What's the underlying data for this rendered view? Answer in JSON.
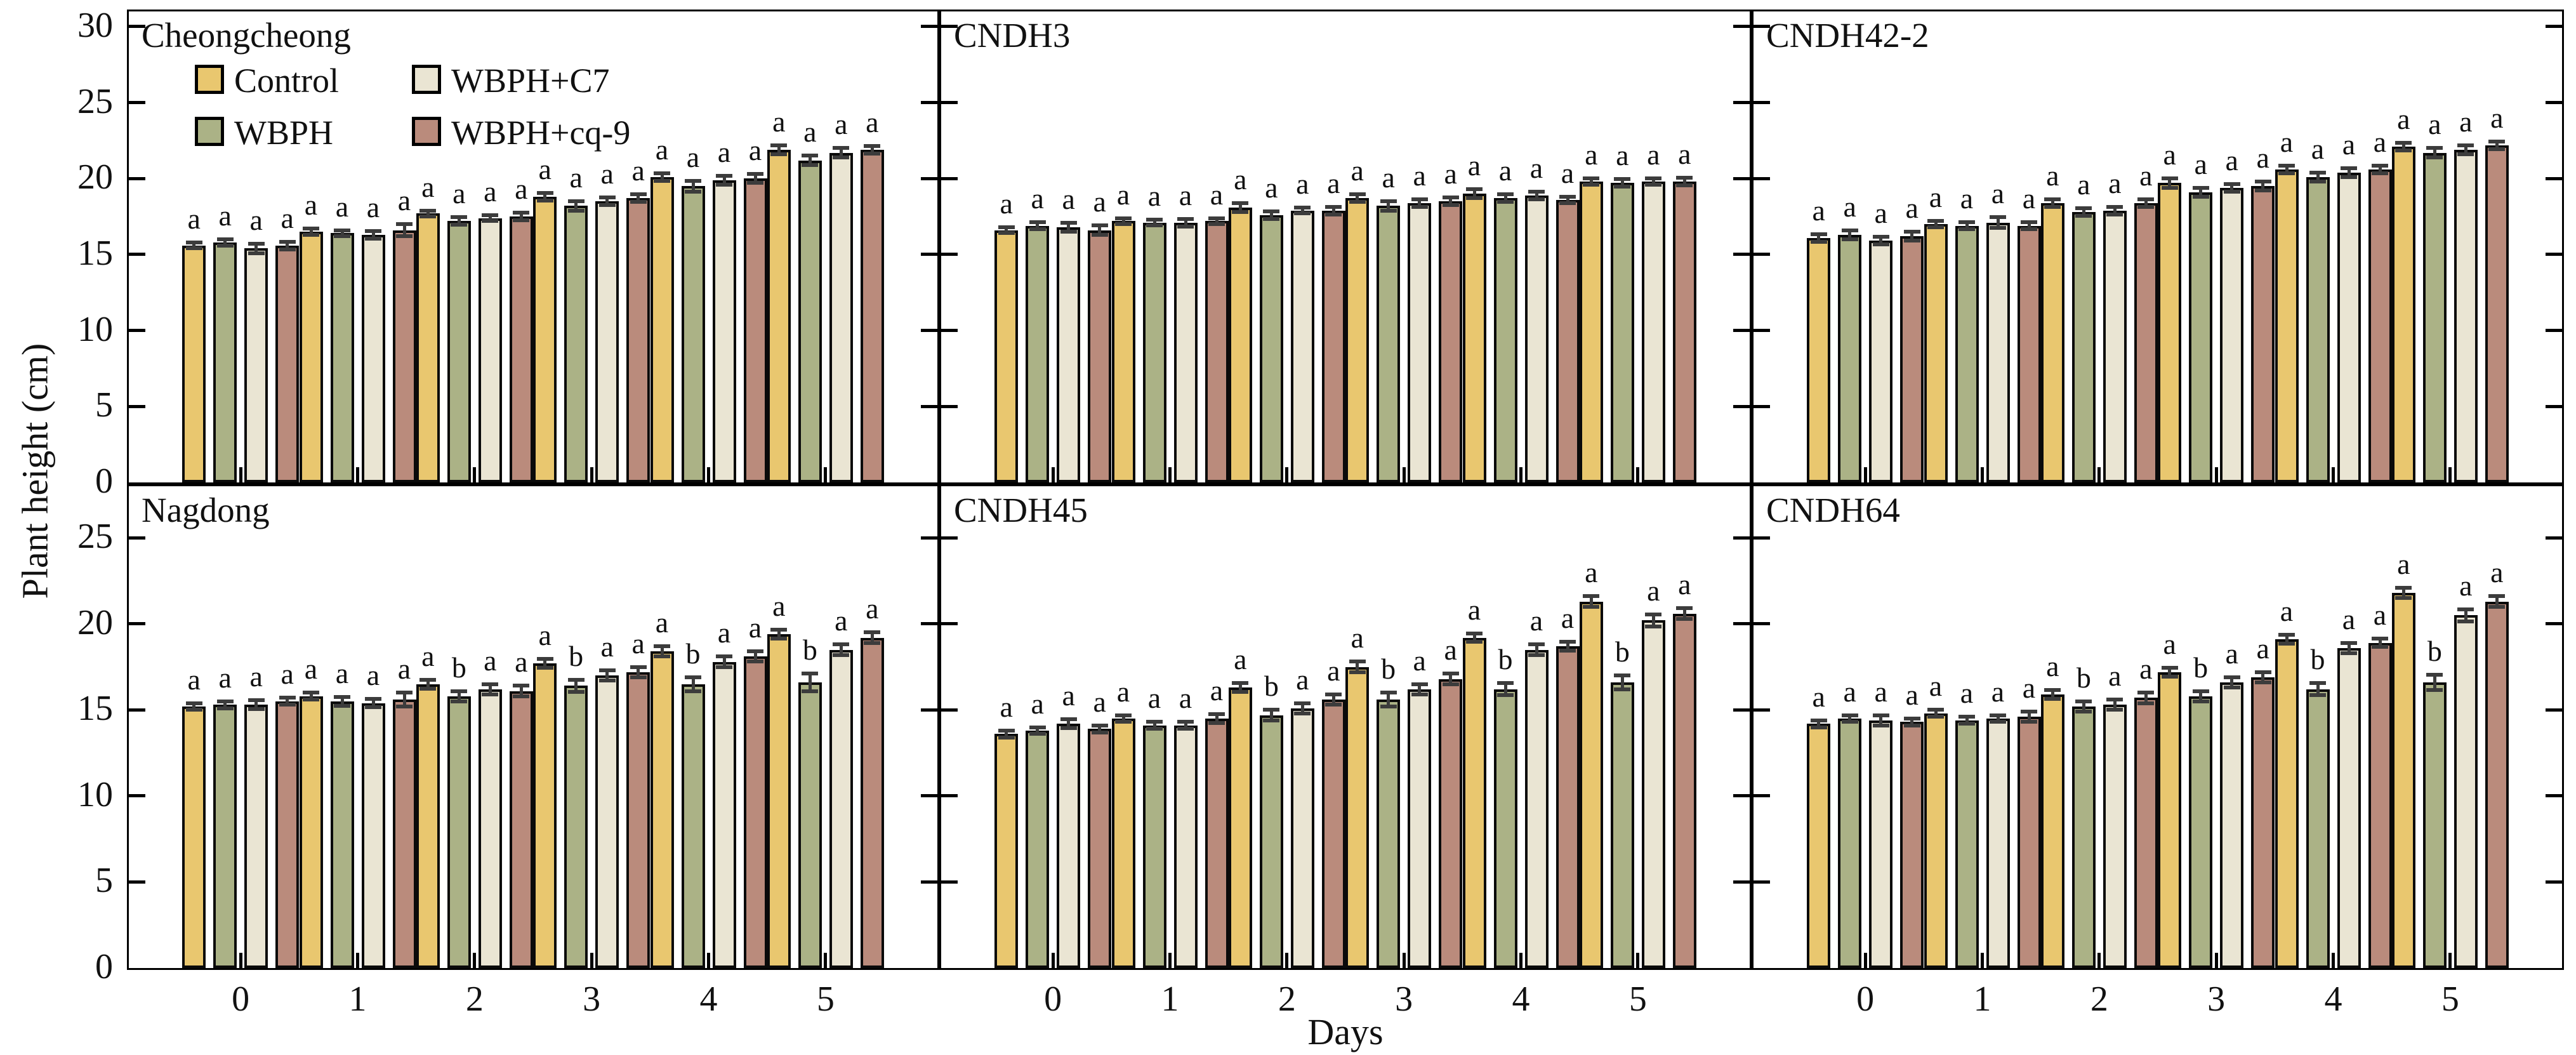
{
  "figure": {
    "y_axis_label": "Plant height (cm)",
    "x_axis_label": "Days",
    "colors": {
      "control": "#e9c76f",
      "wbph": "#abb286",
      "c7": "#eae5d3",
      "cq9": "#ba8b7c",
      "error_bar": "#3c3c3c",
      "bar_outline": "#0a0a0a",
      "frame": "#000000"
    },
    "legend": {
      "items": [
        {
          "label": "Control",
          "color_key": "control"
        },
        {
          "label": "WBPH+C7",
          "color_key": "c7"
        },
        {
          "label": "WBPH",
          "color_key": "wbph"
        },
        {
          "label": "WBPH+cq-9",
          "color_key": "cq9"
        }
      ]
    },
    "axes": {
      "top_row_ticks": [
        30,
        25,
        20,
        15,
        10,
        5,
        0
      ],
      "bottom_row_ticks": [
        25,
        20,
        15,
        10,
        5,
        0
      ]
    }
  },
  "chart_data": [
    {
      "type": "bar",
      "title": "Cheongcheong",
      "show_legend": true,
      "categories": [
        "0",
        "1",
        "2",
        "3",
        "4",
        "5"
      ],
      "ylim": [
        0,
        31
      ],
      "series": [
        {
          "name": "Control",
          "color_key": "control",
          "values": [
            15.6,
            16.5,
            17.7,
            18.8,
            20.1,
            21.9
          ],
          "errors": [
            0.2,
            0.2,
            0.2,
            0.25,
            0.25,
            0.3
          ],
          "letters": [
            "a",
            "a",
            "a",
            "a",
            "a",
            "a"
          ]
        },
        {
          "name": "WBPH",
          "color_key": "wbph",
          "values": [
            15.8,
            16.4,
            17.2,
            18.2,
            19.5,
            21.2
          ],
          "errors": [
            0.2,
            0.2,
            0.25,
            0.3,
            0.35,
            0.3
          ],
          "letters": [
            "a",
            "a",
            "a",
            "a",
            "a",
            "a"
          ]
        },
        {
          "name": "WBPH+C7",
          "color_key": "c7",
          "values": [
            15.4,
            16.3,
            17.4,
            18.5,
            19.9,
            21.7
          ],
          "errors": [
            0.3,
            0.25,
            0.2,
            0.25,
            0.3,
            0.3
          ],
          "letters": [
            "a",
            "a",
            "a",
            "a",
            "a",
            "a"
          ]
        },
        {
          "name": "WBPH+cq-9",
          "color_key": "cq9",
          "values": [
            15.6,
            16.6,
            17.5,
            18.7,
            20.0,
            21.9
          ],
          "errors": [
            0.25,
            0.4,
            0.25,
            0.25,
            0.3,
            0.25
          ],
          "letters": [
            "a",
            "a",
            "a",
            "a",
            "a",
            "a"
          ]
        }
      ]
    },
    {
      "type": "bar",
      "title": "CNDH3",
      "show_legend": false,
      "categories": [
        "0",
        "1",
        "2",
        "3",
        "4",
        "5"
      ],
      "ylim": [
        0,
        31
      ],
      "series": [
        {
          "name": "Control",
          "color_key": "control",
          "values": [
            16.6,
            17.2,
            18.1,
            18.7,
            19.0,
            19.8
          ],
          "errors": [
            0.2,
            0.2,
            0.3,
            0.25,
            0.3,
            0.2
          ],
          "letters": [
            "a",
            "a",
            "a",
            "a",
            "a",
            "a"
          ]
        },
        {
          "name": "WBPH",
          "color_key": "wbph",
          "values": [
            16.9,
            17.1,
            17.6,
            18.2,
            18.7,
            19.7
          ],
          "errors": [
            0.25,
            0.2,
            0.25,
            0.3,
            0.25,
            0.25
          ],
          "letters": [
            "a",
            "a",
            "a",
            "a",
            "a",
            "a"
          ]
        },
        {
          "name": "WBPH+C7",
          "color_key": "c7",
          "values": [
            16.8,
            17.1,
            17.9,
            18.4,
            18.9,
            19.8
          ],
          "errors": [
            0.3,
            0.25,
            0.2,
            0.25,
            0.25,
            0.2
          ],
          "letters": [
            "a",
            "a",
            "a",
            "a",
            "a",
            "a"
          ]
        },
        {
          "name": "WBPH+cq-9",
          "color_key": "cq9",
          "values": [
            16.6,
            17.2,
            17.9,
            18.5,
            18.6,
            19.8
          ],
          "errors": [
            0.3,
            0.2,
            0.25,
            0.25,
            0.2,
            0.25
          ],
          "letters": [
            "a",
            "a",
            "a",
            "a",
            "a",
            "a"
          ]
        }
      ]
    },
    {
      "type": "bar",
      "title": "CNDH42-2",
      "show_legend": false,
      "categories": [
        "0",
        "1",
        "2",
        "3",
        "4",
        "5"
      ],
      "ylim": [
        0,
        31
      ],
      "series": [
        {
          "name": "Control",
          "color_key": "control",
          "values": [
            16.1,
            17.0,
            18.4,
            19.7,
            20.6,
            22.1
          ],
          "errors": [
            0.25,
            0.2,
            0.25,
            0.3,
            0.25,
            0.25
          ],
          "letters": [
            "a",
            "a",
            "a",
            "a",
            "a",
            "a"
          ]
        },
        {
          "name": "WBPH",
          "color_key": "wbph",
          "values": [
            16.3,
            16.9,
            17.8,
            19.1,
            20.1,
            21.7
          ],
          "errors": [
            0.3,
            0.25,
            0.25,
            0.3,
            0.3,
            0.3
          ],
          "letters": [
            "a",
            "a",
            "a",
            "a",
            "a",
            "a"
          ]
        },
        {
          "name": "WBPH+C7",
          "color_key": "c7",
          "values": [
            15.9,
            17.1,
            17.9,
            19.4,
            20.4,
            21.9
          ],
          "errors": [
            0.25,
            0.35,
            0.25,
            0.25,
            0.3,
            0.3
          ],
          "letters": [
            "a",
            "a",
            "a",
            "a",
            "a",
            "a"
          ]
        },
        {
          "name": "WBPH+cq-9",
          "color_key": "cq9",
          "values": [
            16.2,
            16.9,
            18.4,
            19.5,
            20.6,
            22.2
          ],
          "errors": [
            0.3,
            0.25,
            0.25,
            0.3,
            0.25,
            0.25
          ],
          "letters": [
            "a",
            "a",
            "a",
            "a",
            "a",
            "a"
          ]
        }
      ]
    },
    {
      "type": "bar",
      "title": "Nagdong",
      "show_legend": false,
      "categories": [
        "0",
        "1",
        "2",
        "3",
        "4",
        "5"
      ],
      "ylim": [
        0,
        28
      ],
      "series": [
        {
          "name": "Control",
          "color_key": "control",
          "values": [
            15.2,
            15.8,
            16.5,
            17.7,
            18.4,
            19.4
          ],
          "errors": [
            0.2,
            0.2,
            0.25,
            0.25,
            0.3,
            0.25
          ],
          "letters": [
            "a",
            "a",
            "a",
            "a",
            "a",
            "a"
          ]
        },
        {
          "name": "WBPH",
          "color_key": "wbph",
          "values": [
            15.3,
            15.5,
            15.8,
            16.4,
            16.5,
            16.6
          ],
          "errors": [
            0.2,
            0.25,
            0.3,
            0.35,
            0.4,
            0.5
          ],
          "letters": [
            "a",
            "a",
            "b",
            "b",
            "b",
            "b"
          ]
        },
        {
          "name": "WBPH+C7",
          "color_key": "c7",
          "values": [
            15.3,
            15.4,
            16.2,
            17.0,
            17.8,
            18.5
          ],
          "errors": [
            0.25,
            0.25,
            0.3,
            0.3,
            0.3,
            0.3
          ],
          "letters": [
            "a",
            "a",
            "a",
            "a",
            "a",
            "a"
          ]
        },
        {
          "name": "WBPH+cq-9",
          "color_key": "cq9",
          "values": [
            15.5,
            15.6,
            16.1,
            17.2,
            18.1,
            19.2
          ],
          "errors": [
            0.2,
            0.4,
            0.3,
            0.3,
            0.3,
            0.3
          ],
          "letters": [
            "a",
            "a",
            "a",
            "a",
            "a",
            "a"
          ]
        }
      ]
    },
    {
      "type": "bar",
      "title": "CNDH45",
      "show_legend": false,
      "categories": [
        "0",
        "1",
        "2",
        "3",
        "4",
        "5"
      ],
      "ylim": [
        0,
        28
      ],
      "series": [
        {
          "name": "Control",
          "color_key": "control",
          "values": [
            13.6,
            14.5,
            16.3,
            17.5,
            19.2,
            21.3
          ],
          "errors": [
            0.2,
            0.2,
            0.25,
            0.3,
            0.25,
            0.3
          ],
          "letters": [
            "a",
            "a",
            "a",
            "a",
            "a",
            "a"
          ]
        },
        {
          "name": "WBPH",
          "color_key": "wbph",
          "values": [
            13.8,
            14.1,
            14.7,
            15.6,
            16.2,
            16.6
          ],
          "errors": [
            0.2,
            0.2,
            0.3,
            0.4,
            0.35,
            0.4
          ],
          "letters": [
            "a",
            "a",
            "b",
            "b",
            "b",
            "b"
          ]
        },
        {
          "name": "WBPH+C7",
          "color_key": "c7",
          "values": [
            14.2,
            14.1,
            15.1,
            16.2,
            18.5,
            20.2
          ],
          "errors": [
            0.25,
            0.2,
            0.3,
            0.3,
            0.3,
            0.35
          ],
          "letters": [
            "a",
            "a",
            "a",
            "a",
            "a",
            "a"
          ]
        },
        {
          "name": "WBPH+cq-9",
          "color_key": "cq9",
          "values": [
            13.9,
            14.5,
            15.6,
            16.8,
            18.7,
            20.6
          ],
          "errors": [
            0.2,
            0.25,
            0.3,
            0.3,
            0.25,
            0.3
          ],
          "letters": [
            "a",
            "a",
            "a",
            "a",
            "a",
            "a"
          ]
        }
      ]
    },
    {
      "type": "bar",
      "title": "CNDH64",
      "show_legend": false,
      "categories": [
        "0",
        "1",
        "2",
        "3",
        "4",
        "5"
      ],
      "ylim": [
        0,
        28
      ],
      "series": [
        {
          "name": "Control",
          "color_key": "control",
          "values": [
            14.2,
            14.8,
            15.9,
            17.2,
            19.1,
            21.8
          ],
          "errors": [
            0.2,
            0.2,
            0.25,
            0.25,
            0.25,
            0.3
          ],
          "letters": [
            "a",
            "a",
            "a",
            "a",
            "a",
            "a"
          ]
        },
        {
          "name": "WBPH",
          "color_key": "wbph",
          "values": [
            14.5,
            14.4,
            15.2,
            15.8,
            16.2,
            16.6
          ],
          "errors": [
            0.2,
            0.2,
            0.3,
            0.3,
            0.35,
            0.45
          ],
          "letters": [
            "a",
            "a",
            "b",
            "b",
            "b",
            "b"
          ]
        },
        {
          "name": "WBPH+C7",
          "color_key": "c7",
          "values": [
            14.4,
            14.5,
            15.3,
            16.6,
            18.6,
            20.5
          ],
          "errors": [
            0.3,
            0.2,
            0.3,
            0.3,
            0.3,
            0.35
          ],
          "letters": [
            "a",
            "a",
            "a",
            "a",
            "a",
            "a"
          ]
        },
        {
          "name": "WBPH+cq-9",
          "color_key": "cq9",
          "values": [
            14.3,
            14.6,
            15.7,
            16.9,
            18.9,
            21.3
          ],
          "errors": [
            0.2,
            0.3,
            0.3,
            0.3,
            0.25,
            0.3
          ],
          "letters": [
            "a",
            "a",
            "a",
            "a",
            "a",
            "a"
          ]
        }
      ]
    }
  ]
}
